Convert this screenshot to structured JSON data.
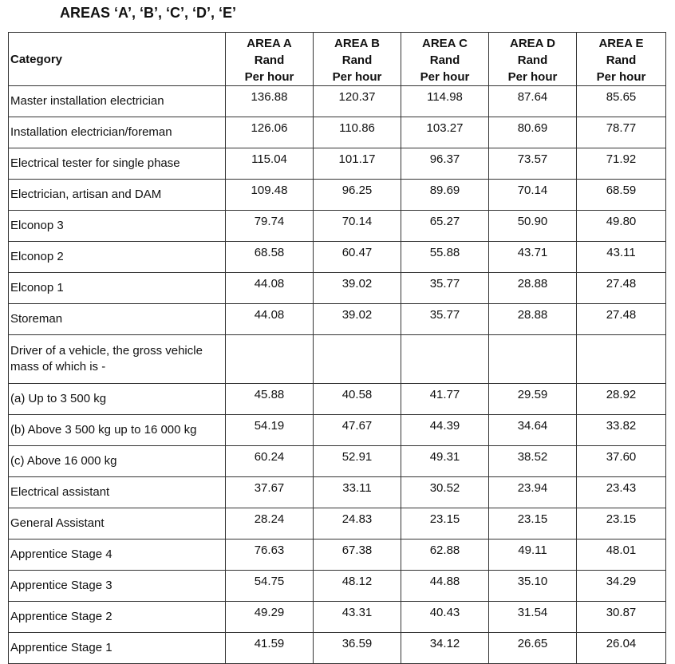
{
  "title": "AREAS ‘A’, ‘B’, ‘C’, ‘D’, ‘E’",
  "table": {
    "category_header": "Category",
    "columns": [
      [
        "AREA A",
        "Rand",
        "Per hour"
      ],
      [
        "AREA B",
        "Rand",
        "Per hour"
      ],
      [
        "AREA C",
        "Rand",
        "Per hour"
      ],
      [
        "AREA D",
        "Rand",
        "Per hour"
      ],
      [
        "AREA E",
        "Rand",
        "Per hour"
      ]
    ],
    "rows": [
      {
        "label": "Master  installation electrician",
        "values": [
          "136.88",
          "120.37",
          "114.98",
          "87.64",
          "85.65"
        ]
      },
      {
        "label": "Installation electrician/foreman",
        "values": [
          "126.06",
          "110.86",
          "103.27",
          "80.69",
          "78.77"
        ]
      },
      {
        "label": "Electrical tester for single phase",
        "values": [
          "115.04",
          "101.17",
          "96.37",
          "73.57",
          "71.92"
        ]
      },
      {
        "label": "Electrician, artisan and DAM",
        "values": [
          "109.48",
          "96.25",
          "89.69",
          "70.14",
          "68.59"
        ]
      },
      {
        "label": "Elconop 3",
        "values": [
          "79.74",
          "70.14",
          "65.27",
          "50.90",
          "49.80"
        ]
      },
      {
        "label": "Elconop 2",
        "values": [
          "68.58",
          "60.47",
          "55.88",
          "43.71",
          "43.11"
        ]
      },
      {
        "label": "Elconop 1",
        "values": [
          "44.08",
          "39.02",
          "35.77",
          "28.88",
          "27.48"
        ]
      },
      {
        "label": "Storeman",
        "values": [
          "44.08",
          "39.02",
          "35.77",
          "28.88",
          "27.48"
        ]
      },
      {
        "label": "Driver of a vehicle, the gross vehicle mass of which is -"
      },
      {
        "label": "(a)  Up to 3 500 kg",
        "values": [
          "45.88",
          "40.58",
          "41.77",
          "29.59",
          "28.92"
        ]
      },
      {
        "label": "(b)  Above 3 500 kg up to 16 000 kg",
        "values": [
          "54.19",
          "47.67",
          "44.39",
          "34.64",
          "33.82"
        ]
      },
      {
        "label": "(c)  Above 16 000 kg",
        "values": [
          "60.24",
          "52.91",
          "49.31",
          "38.52",
          "37.60"
        ]
      },
      {
        "label": "Electrical assistant",
        "values": [
          "37.67",
          "33.11",
          "30.52",
          "23.94",
          "23.43"
        ]
      },
      {
        "label": "General Assistant",
        "values": [
          "28.24",
          "24.83",
          "23.15",
          "23.15",
          "23.15"
        ]
      },
      {
        "label": "Apprentice Stage 4",
        "values": [
          "76.63",
          "67.38",
          "62.88",
          "49.11",
          "48.01"
        ]
      },
      {
        "label": "Apprentice Stage 3",
        "values": [
          "54.75",
          "48.12",
          "44.88",
          "35.10",
          "34.29"
        ]
      },
      {
        "label": "Apprentice Stage 2",
        "values": [
          "49.29",
          "43.31",
          "40.43",
          "31.54",
          "30.87"
        ]
      },
      {
        "label": "Apprentice Stage 1",
        "values": [
          "41.59",
          "36.59",
          "34.12",
          "26.65",
          "26.04"
        ]
      }
    ]
  }
}
